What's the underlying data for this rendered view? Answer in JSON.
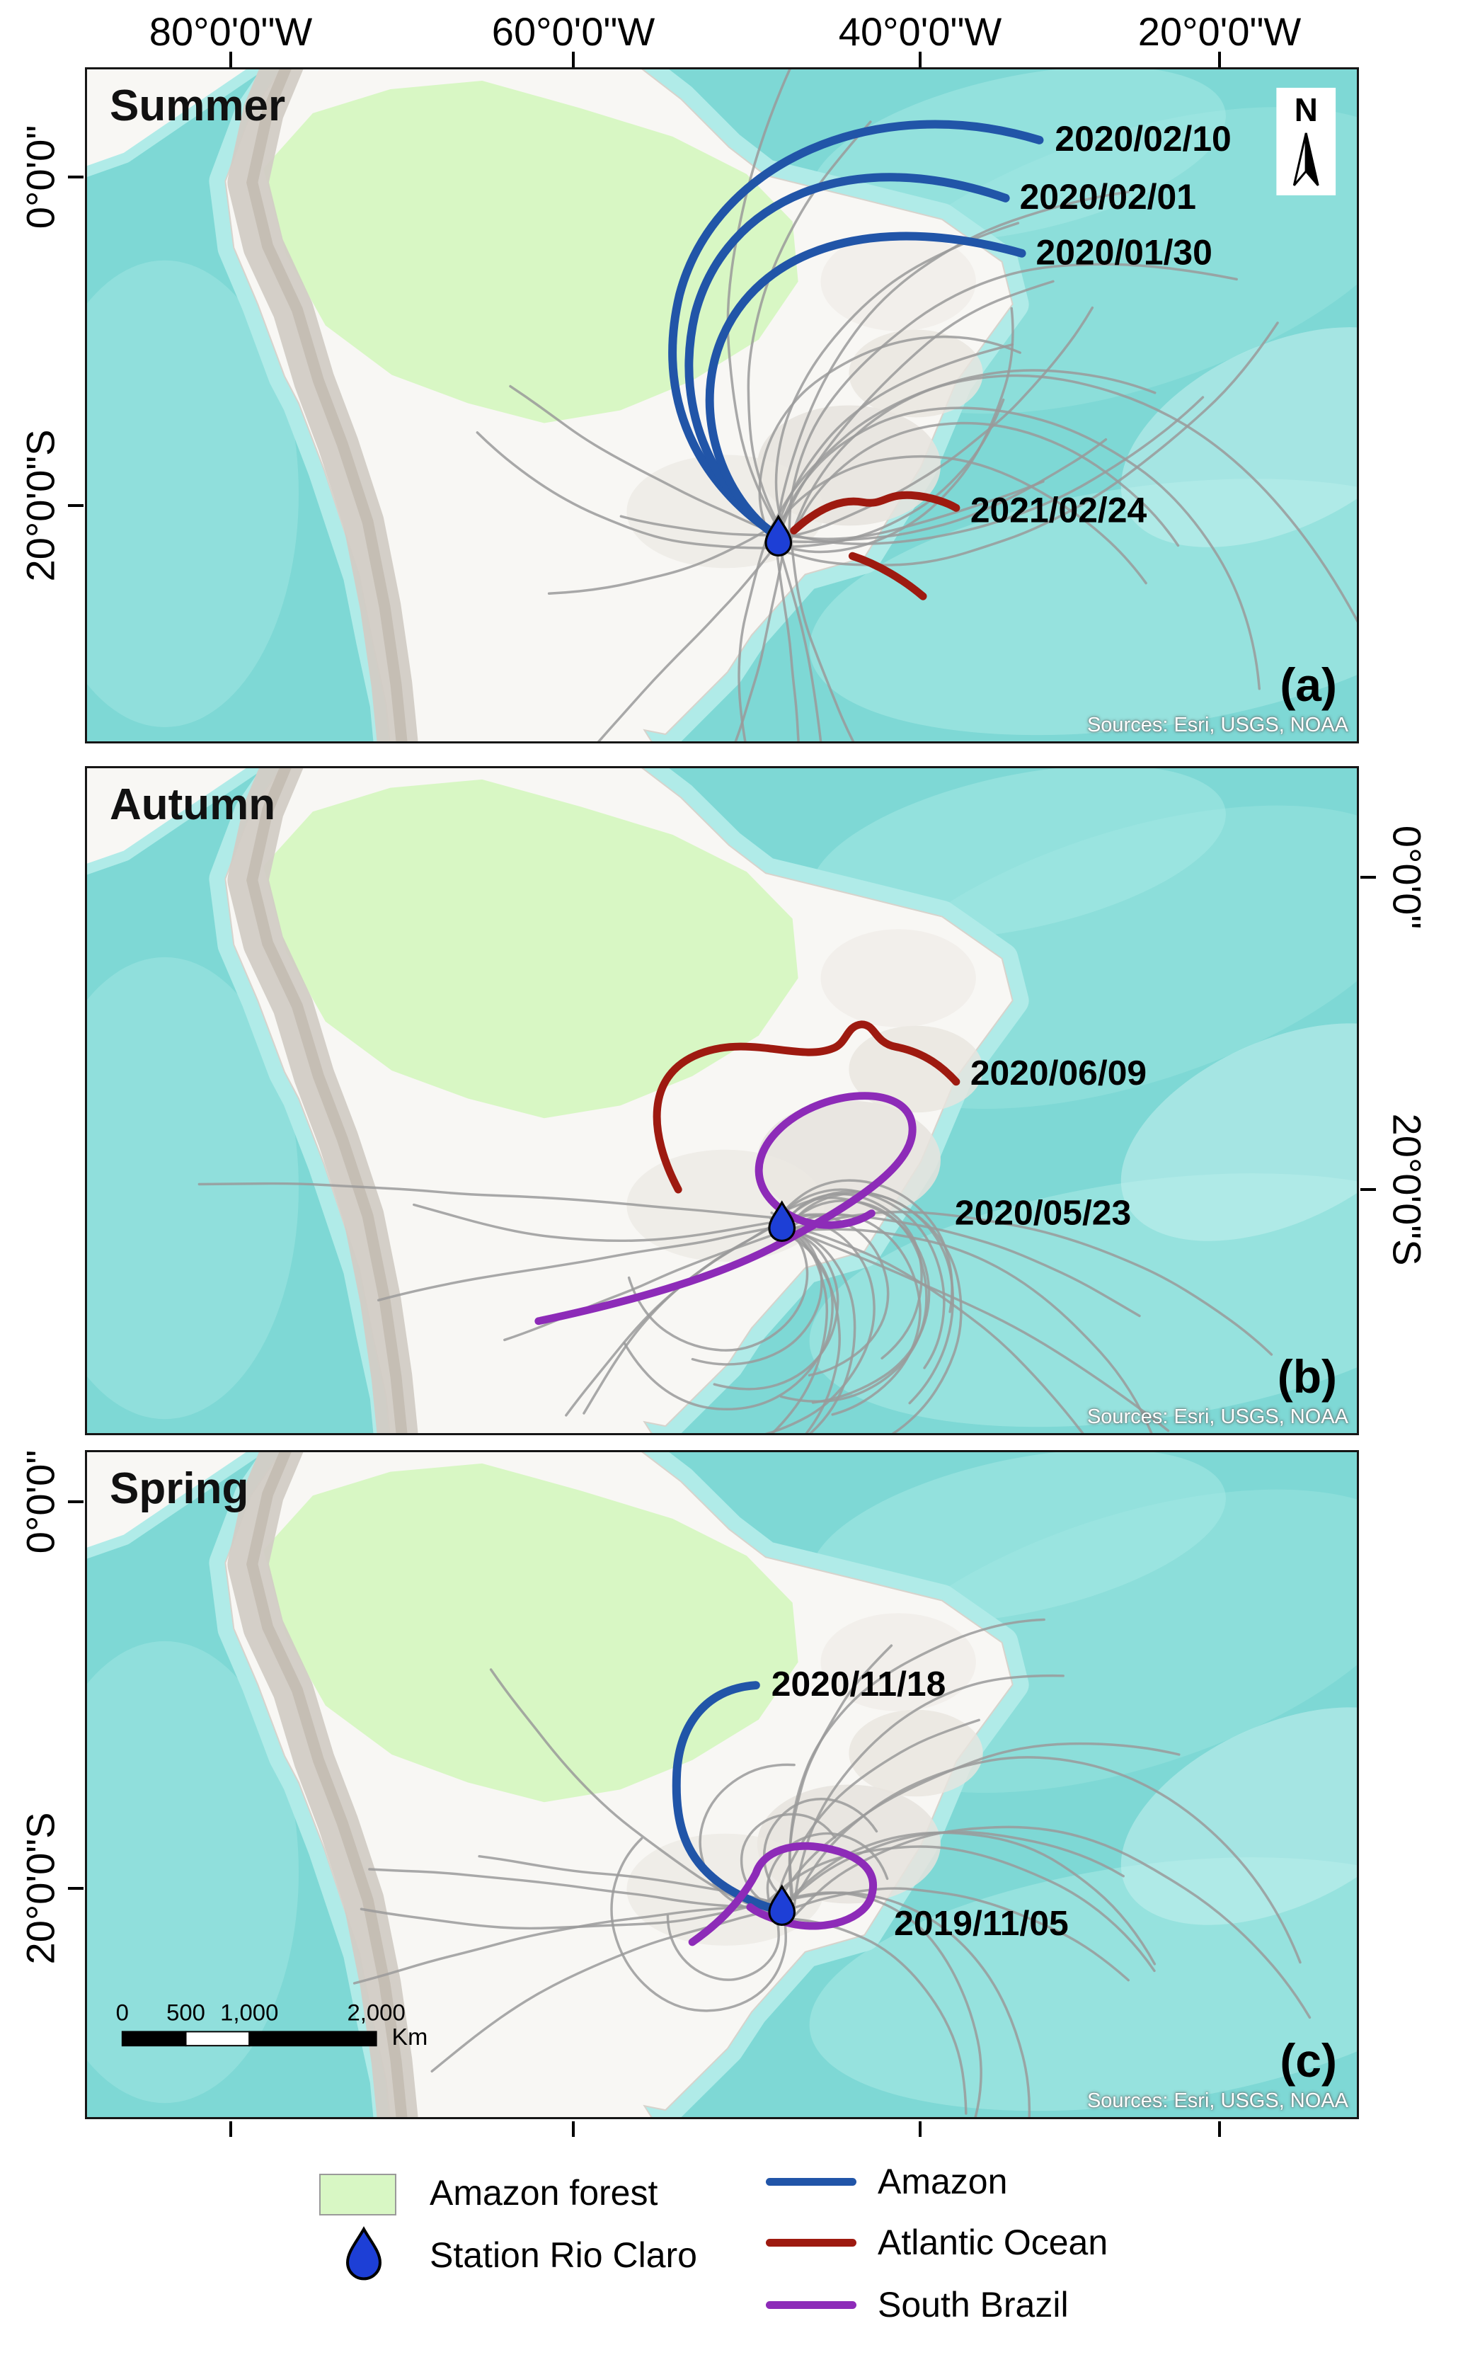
{
  "colors": {
    "ocean": "#7ed8d5",
    "land": "#f8f7f4",
    "amazon_forest_fill": "#d8f7c4",
    "gray_trajectory": "#9a9a9a",
    "amazon_line": "#2155a8",
    "atlantic_ocean_line": "#9e1a10",
    "south_brazil_line": "#8d2bb8",
    "station_marker": "#1d3fd6"
  },
  "axes": {
    "top": [
      "80°0'0\"W",
      "60°0'0\"W",
      "40°0'0\"W",
      "20°0'0\"W"
    ],
    "panel_a_left": [
      "0°0'0\"",
      "20°0'0\"S"
    ],
    "panel_b_right": [
      "0°0'0\"",
      "20°0'0\"S"
    ],
    "panel_c_left": [
      "0°0'0\"",
      "20°0'0\"S"
    ]
  },
  "north_arrow_label": "N",
  "panels": [
    {
      "season": "Summer",
      "letter": "(a)",
      "sources": "Sources: Esri, USGS, NOAA",
      "trajectories": [
        {
          "date": "2020/02/10",
          "origin": "Amazon",
          "color": "#2155a8"
        },
        {
          "date": "2020/02/01",
          "origin": "Amazon",
          "color": "#2155a8"
        },
        {
          "date": "2020/01/30",
          "origin": "Amazon",
          "color": "#2155a8"
        },
        {
          "date": "2021/02/24",
          "origin": "Atlantic Ocean",
          "color": "#9e1a10"
        }
      ]
    },
    {
      "season": "Autumn",
      "letter": "(b)",
      "sources": "Sources: Esri, USGS, NOAA",
      "trajectories": [
        {
          "date": "2020/06/09",
          "origin": "Atlantic Ocean",
          "color": "#9e1a10"
        },
        {
          "date": "2020/05/23",
          "origin": "South Brazil",
          "color": "#8d2bb8"
        }
      ]
    },
    {
      "season": "Spring",
      "letter": "(c)",
      "sources": "Sources: Esri, USGS, NOAA",
      "trajectories": [
        {
          "date": "2020/11/18",
          "origin": "Amazon",
          "color": "#2155a8"
        },
        {
          "date": "2019/11/05",
          "origin": "South Brazil",
          "color": "#8d2bb8"
        }
      ],
      "scalebar": {
        "ticks": [
          "0",
          "500",
          "1,000",
          "2,000"
        ],
        "unit": "Km"
      }
    }
  ],
  "legend": {
    "area_items": [
      {
        "label": "Amazon forest",
        "swatch": "green-area"
      },
      {
        "label": "Station Rio Claro",
        "swatch": "droplet"
      }
    ],
    "line_items": [
      {
        "label": "Amazon",
        "color": "#2155a8"
      },
      {
        "label": "Atlantic Ocean",
        "color": "#9e1a10"
      },
      {
        "label": "South Brazil",
        "color": "#8d2bb8"
      }
    ]
  }
}
